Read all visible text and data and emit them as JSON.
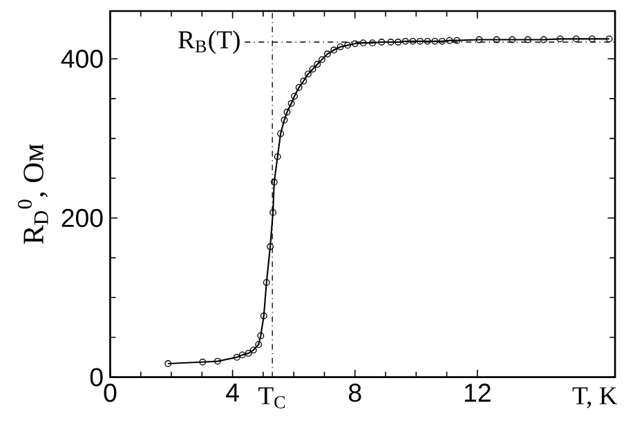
{
  "chart_data": {
    "type": "line",
    "xlabel": "T, K",
    "ylabel": "R$_{D}$$^{0}$, Ом",
    "xlim": [
      0,
      16.5
    ],
    "ylim": [
      0,
      460
    ],
    "xticks": [
      0,
      4,
      8,
      12
    ],
    "yticks": [
      0,
      200,
      400
    ],
    "marker": "circle",
    "line_style": "solid",
    "series": [
      {
        "color": "#000000",
        "x": [
          1.89,
          3.02,
          3.51,
          4.14,
          4.32,
          4.52,
          4.68,
          4.85,
          4.92,
          5.02,
          5.11,
          5.23,
          5.32,
          5.36,
          5.47,
          5.57,
          5.69,
          5.78,
          5.92,
          6.02,
          6.17,
          6.32,
          6.47,
          6.62,
          6.77,
          6.92,
          7.1,
          7.31,
          7.52,
          7.76,
          8.0,
          8.27,
          8.57,
          8.87,
          9.17,
          9.41,
          9.65,
          9.89,
          10.13,
          10.37,
          10.61,
          10.85,
          11.09,
          11.33,
          12.06,
          12.63,
          13.14,
          13.65,
          14.17,
          14.71,
          15.23,
          15.75,
          16.31
        ],
        "values": [
          17,
          19,
          20,
          25,
          28,
          30,
          34,
          41,
          52,
          77,
          119,
          164,
          207,
          245,
          277,
          306,
          323,
          333,
          344,
          353,
          364,
          372,
          381,
          387,
          393,
          399,
          406,
          411,
          415,
          417,
          419,
          420,
          420,
          421,
          421,
          421,
          422,
          422,
          422,
          422,
          422,
          422,
          423,
          423,
          424,
          424,
          424,
          424,
          424,
          425,
          425,
          425,
          425
        ]
      }
    ],
    "ref_lines": [
      {
        "axis": "x",
        "value": 5.3,
        "label": "T$_{C}$",
        "line_style": "dashdotted"
      },
      {
        "axis": "y",
        "value": 421,
        "label": "R$_{B}$(T)",
        "line_style": "dashdotted"
      }
    ]
  }
}
